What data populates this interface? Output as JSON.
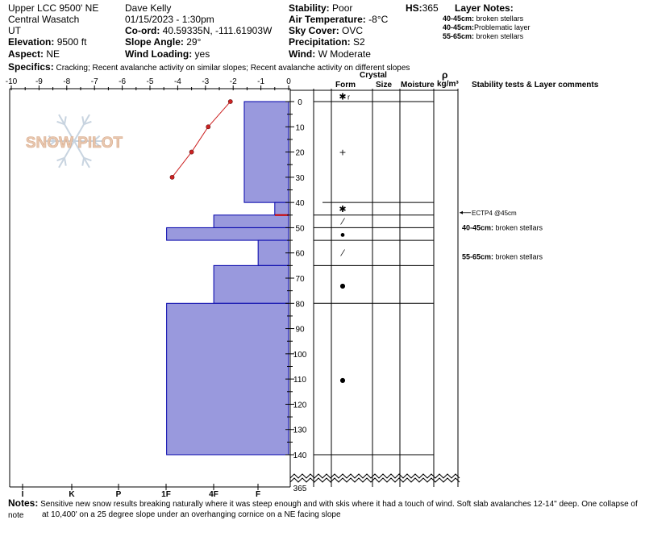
{
  "header": {
    "location": "Upper LCC 9500' NE",
    "range": "Central Wasatch",
    "state": "UT",
    "elevation": {
      "label": "Elevation:",
      "value": "9500 ft"
    },
    "aspect": {
      "label": "Aspect:",
      "value": "NE"
    },
    "observer": "Dave Kelly",
    "datetime": "01/15/2023 - 1:30pm",
    "coord": {
      "label": "Co-ord:",
      "value": "40.59335N, -111.61903W"
    },
    "slope_angle": {
      "label": "Slope Angle:",
      "value": "29°"
    },
    "wind_loading": {
      "label": "Wind Loading:",
      "value": "yes"
    },
    "stability": {
      "label": "Stability:",
      "value": "Poor"
    },
    "air_temp": {
      "label": "Air Temperature:",
      "value": "-8°C"
    },
    "sky_cover": {
      "label": "Sky Cover:",
      "value": "OVC"
    },
    "precipitation": {
      "label": "Precipitation:",
      "value": "S2"
    },
    "wind": {
      "label": "Wind:",
      "value": "W Moderate"
    },
    "hs": {
      "label": "HS:",
      "value": "365"
    },
    "layer_notes_title": "Layer Notes:",
    "layer_notes": [
      {
        "range": "40-45cm:",
        "text": "broken stellars"
      },
      {
        "range": "40-45cm:",
        "text": "Problematic layer"
      },
      {
        "range": "55-65cm:",
        "text": "broken stellars"
      }
    ],
    "specifics": {
      "label": "Specifics:",
      "value": "Cracking; Recent avalanche activity on similar slopes; Recent avalanche activity on different slopes"
    }
  },
  "columns": {
    "crystal": "Crystal",
    "form": "Form",
    "size": "Size",
    "moisture": "Moisture",
    "rho": "ρ",
    "density_unit": "kg/m³",
    "stability_comments": "Stability tests & Layer comments"
  },
  "logo_text": "SNOW PILOT",
  "hardness_labels": [
    "I",
    "K",
    "P",
    "1F",
    "4F",
    "F"
  ],
  "temp_ticks": [
    "-10",
    "-9",
    "-8",
    "-7",
    "-6",
    "-5",
    "-4",
    "-3",
    "-2",
    "-1",
    "0"
  ],
  "depth_ticks": [
    "0",
    "10",
    "20",
    "30",
    "40",
    "50",
    "60",
    "70",
    "80",
    "90",
    "100",
    "110",
    "120",
    "130",
    "140"
  ],
  "depth_bottom_label": "365",
  "chart_data": {
    "type": "snow-profile",
    "temperature_profile": {
      "x_axis": "temperature °C",
      "xlim": [
        -10,
        0
      ],
      "points": [
        {
          "depth": 0,
          "temp": -2.1
        },
        {
          "depth": 10,
          "temp": -2.9
        },
        {
          "depth": 20,
          "temp": -3.5
        },
        {
          "depth": 30,
          "temp": -4.2
        }
      ]
    },
    "depth_axis": {
      "ylim": [
        0,
        140
      ],
      "snow_height": 365
    },
    "hardness_layers": [
      {
        "top": 0,
        "bottom": 40,
        "hardness_temp_scale": -1.6
      },
      {
        "top": 40,
        "bottom": 45,
        "hardness_temp_scale": -0.5
      },
      {
        "top": 45,
        "bottom": 50,
        "hardness_temp_scale": -2.7
      },
      {
        "top": 50,
        "bottom": 55,
        "hardness_temp_scale": -4.4
      },
      {
        "top": 55,
        "bottom": 65,
        "hardness_temp_scale": -1.1
      },
      {
        "top": 65,
        "bottom": 80,
        "hardness_temp_scale": -2.7
      },
      {
        "top": 80,
        "bottom": 140,
        "hardness_temp_scale": -4.4
      }
    ],
    "layer_boundaries": [
      0,
      40,
      45,
      50,
      55,
      65,
      80,
      140
    ],
    "crystal_forms": [
      {
        "depth": -2,
        "symbol": "✱",
        "suffix": "r"
      },
      {
        "depth": 20,
        "symbol": "+",
        "suffix": ""
      },
      {
        "depth": 42.5,
        "symbol": "✱",
        "suffix": ""
      },
      {
        "depth": 47.5,
        "symbol": "⁄",
        "suffix": ""
      },
      {
        "depth": 52.5,
        "symbol": "⦁",
        "suffix": ""
      },
      {
        "depth": 60,
        "symbol": "⁄",
        "suffix": ""
      },
      {
        "depth": 72.5,
        "symbol": "●",
        "suffix": ""
      },
      {
        "depth": 110,
        "symbol": "●",
        "suffix": ""
      }
    ],
    "stability_tests": [
      {
        "depth": 45,
        "text": "ECTP4 @45cm"
      }
    ],
    "layer_comments": [
      {
        "depth": 50,
        "range": "40-45cm:",
        "text": "broken stellars"
      },
      {
        "depth": 61.5,
        "range": "55-65cm:",
        "text": "broken stellars"
      }
    ]
  },
  "notes": {
    "label": "Notes:",
    "line1": "Sensitive new snow results breaking naturally where it was steep enough and with skis where it had a touch of wind. Soft slab avalanches 12-14\" deep. One collapse of note",
    "line2": "at 10,400' on a 25 degree slope under an overhanging cornice on a NE facing slope"
  },
  "colors": {
    "layer_fill": "#9999dd",
    "layer_stroke": "#0000aa",
    "temp_line": "#cc2222",
    "logo": "#e8c8b0"
  }
}
